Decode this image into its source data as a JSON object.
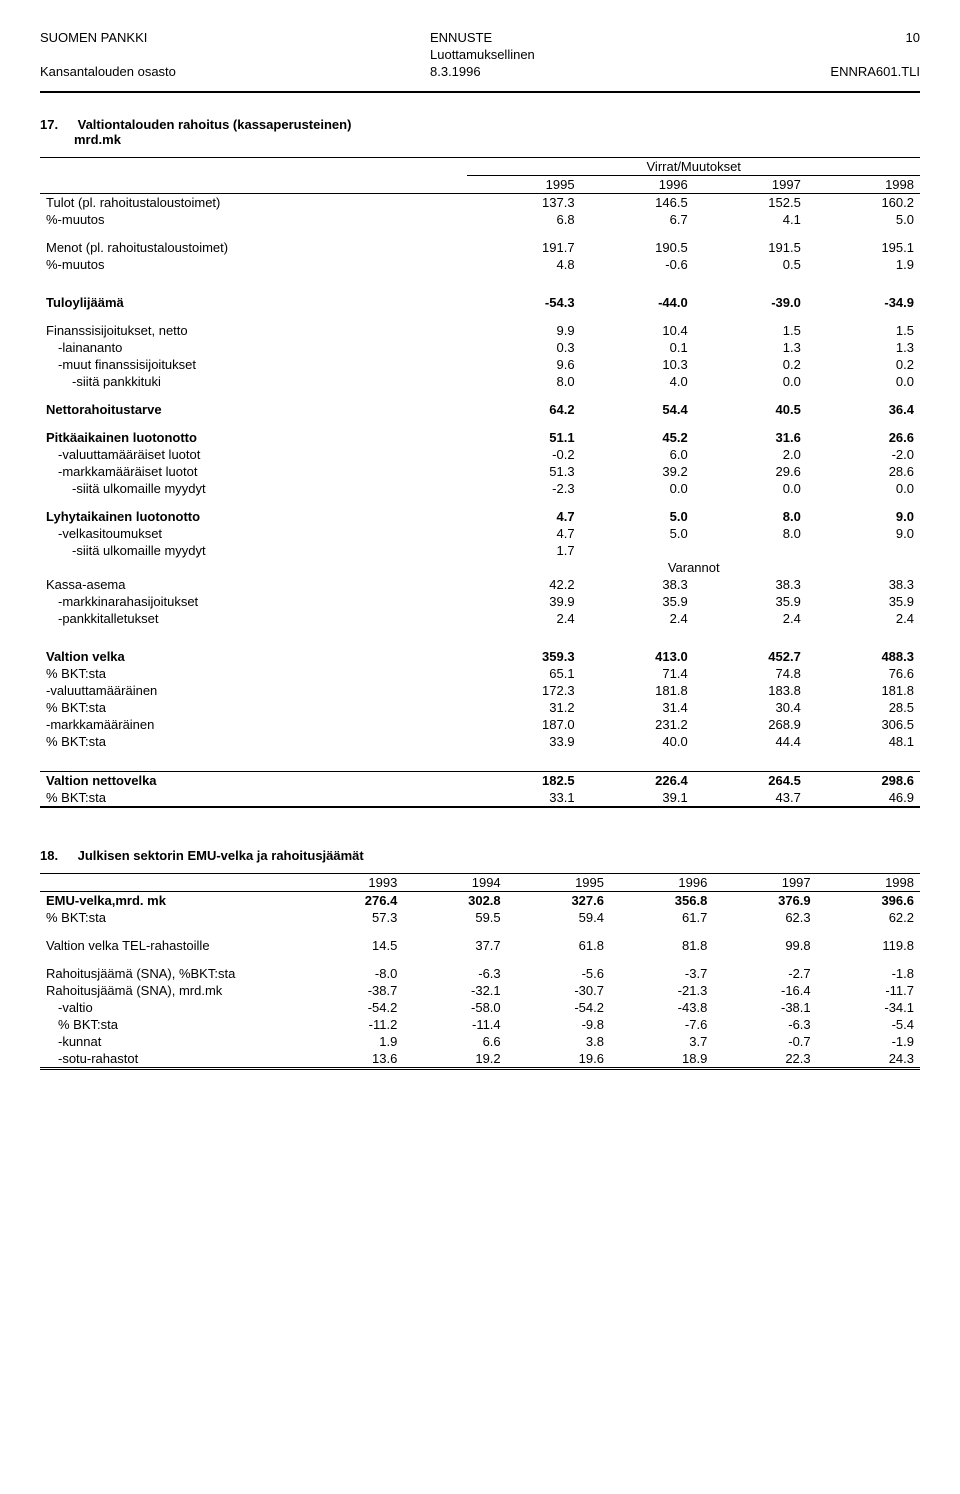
{
  "header": {
    "org1": "SUOMEN PANKKI",
    "org2": "Kansantalouden osasto",
    "mid1": "ENNUSTE",
    "mid2": "Luottamuksellinen",
    "date": "8.3.1996",
    "pagenum": "10",
    "code": "ENNRA601.TLI"
  },
  "s17": {
    "num": "17.",
    "title": "Valtiontalouden rahoitus (kassaperusteinen)",
    "sub": "mrd.mk",
    "spanhead": "Virrat/Muutokset",
    "years": [
      "1995",
      "1996",
      "1997",
      "1998"
    ],
    "rows": [
      {
        "label": "Tulot (pl. rahoitustaloustoimet)",
        "v": [
          "137.3",
          "146.5",
          "152.5",
          "160.2"
        ]
      },
      {
        "label": "%-muutos",
        "v": [
          "6.8",
          "6.7",
          "4.1",
          "5.0"
        ]
      },
      {
        "gap": true
      },
      {
        "label": "Menot (pl. rahoitustaloustoimet)",
        "v": [
          "191.7",
          "190.5",
          "191.5",
          "195.1"
        ]
      },
      {
        "label": "%-muutos",
        "v": [
          "4.8",
          "-0.6",
          "0.5",
          "1.9"
        ]
      },
      {
        "biggap": true
      },
      {
        "label": "Tuloylijäämä",
        "bold": true,
        "v": [
          "-54.3",
          "-44.0",
          "-39.0",
          "-34.9"
        ]
      },
      {
        "gap": true
      },
      {
        "label": "Finanssisijoitukset, netto",
        "v": [
          "9.9",
          "10.4",
          "1.5",
          "1.5"
        ]
      },
      {
        "label": "-lainananto",
        "indent": 1,
        "v": [
          "0.3",
          "0.1",
          "1.3",
          "1.3"
        ]
      },
      {
        "label": "-muut finanssisijoitukset",
        "indent": 1,
        "v": [
          "9.6",
          "10.3",
          "0.2",
          "0.2"
        ]
      },
      {
        "label": "-siitä pankkituki",
        "indent": 2,
        "v": [
          "8.0",
          "4.0",
          "0.0",
          "0.0"
        ]
      },
      {
        "gap": true
      },
      {
        "label": "Nettorahoitustarve",
        "bold": true,
        "v": [
          "64.2",
          "54.4",
          "40.5",
          "36.4"
        ]
      },
      {
        "gap": true
      },
      {
        "label": "Pitkäaikainen luotonotto",
        "bold": true,
        "v": [
          "51.1",
          "45.2",
          "31.6",
          "26.6"
        ]
      },
      {
        "label": "-valuuttamääräiset luotot",
        "indent": 1,
        "v": [
          "-0.2",
          "6.0",
          "2.0",
          "-2.0"
        ]
      },
      {
        "label": "-markkamääräiset luotot",
        "indent": 1,
        "v": [
          "51.3",
          "39.2",
          "29.6",
          "28.6"
        ]
      },
      {
        "label": "-siitä ulkomaille myydyt",
        "indent": 2,
        "v": [
          "-2.3",
          "0.0",
          "0.0",
          "0.0"
        ]
      },
      {
        "gap": true
      },
      {
        "label": "Lyhytaikainen luotonotto",
        "bold": true,
        "v": [
          "4.7",
          "5.0",
          "8.0",
          "9.0"
        ]
      },
      {
        "label": "-velkasitoumukset",
        "indent": 1,
        "v": [
          "4.7",
          "5.0",
          "8.0",
          "9.0"
        ]
      },
      {
        "label": "-siitä ulkomaille myydyt",
        "indent": 2,
        "v": [
          "1.7",
          "",
          "",
          ""
        ]
      },
      {
        "varannot": true,
        "label": "Varannot"
      },
      {
        "label": "Kassa-asema",
        "v": [
          "42.2",
          "38.3",
          "38.3",
          "38.3"
        ]
      },
      {
        "label": "-markkinarahasijoitukset",
        "indent": 1,
        "v": [
          "39.9",
          "35.9",
          "35.9",
          "35.9"
        ]
      },
      {
        "label": "-pankkitalletukset",
        "indent": 1,
        "v": [
          "2.4",
          "2.4",
          "2.4",
          "2.4"
        ]
      },
      {
        "biggap": true
      },
      {
        "label": "Valtion velka",
        "bold": true,
        "v": [
          "359.3",
          "413.0",
          "452.7",
          "488.3"
        ]
      },
      {
        "label": "% BKT:sta",
        "v": [
          "65.1",
          "71.4",
          "74.8",
          "76.6"
        ]
      },
      {
        "label": "-valuuttamääräinen",
        "v": [
          "172.3",
          "181.8",
          "183.8",
          "181.8"
        ]
      },
      {
        "label": "% BKT:sta",
        "v": [
          "31.2",
          "31.4",
          "30.4",
          "28.5"
        ]
      },
      {
        "label": "-markkamääräinen",
        "v": [
          "187.0",
          "231.2",
          "268.9",
          "306.5"
        ]
      },
      {
        "label": "% BKT:sta",
        "v": [
          "33.9",
          "40.0",
          "44.4",
          "48.1"
        ]
      },
      {
        "biggap": true
      },
      {
        "label": "Valtion nettovelka",
        "bold": true,
        "v": [
          "182.5",
          "226.4",
          "264.5",
          "298.6"
        ],
        "toprule": true
      },
      {
        "label": "% BKT:sta",
        "v": [
          "33.1",
          "39.1",
          "43.7",
          "46.9"
        ],
        "botrule2": true
      }
    ]
  },
  "s18": {
    "num": "18.",
    "title": "Julkisen sektorin EMU-velka ja rahoitusjäämät",
    "years": [
      "1993",
      "1994",
      "1995",
      "1996",
      "1997",
      "1998"
    ],
    "rows": [
      {
        "label": "EMU-velka,mrd. mk",
        "bold": true,
        "v": [
          "276.4",
          "302.8",
          "327.6",
          "356.8",
          "376.9",
          "396.6"
        ]
      },
      {
        "label": "% BKT:sta",
        "v": [
          "57.3",
          "59.5",
          "59.4",
          "61.7",
          "62.3",
          "62.2"
        ]
      },
      {
        "gap": true
      },
      {
        "label": "Valtion velka TEL-rahastoille",
        "v": [
          "14.5",
          "37.7",
          "61.8",
          "81.8",
          "99.8",
          "119.8"
        ]
      },
      {
        "gap": true
      },
      {
        "label": "Rahoitusjäämä (SNA), %BKT:sta",
        "v": [
          "-8.0",
          "-6.3",
          "-5.6",
          "-3.7",
          "-2.7",
          "-1.8"
        ]
      },
      {
        "label": "Rahoitusjäämä (SNA), mrd.mk",
        "v": [
          "-38.7",
          "-32.1",
          "-30.7",
          "-21.3",
          "-16.4",
          "-11.7"
        ]
      },
      {
        "label": "-valtio",
        "indent": 1,
        "v": [
          "-54.2",
          "-58.0",
          "-54.2",
          "-43.8",
          "-38.1",
          "-34.1"
        ]
      },
      {
        "label": "% BKT:sta",
        "indent": 1,
        "v": [
          "-11.2",
          "-11.4",
          "-9.8",
          "-7.6",
          "-6.3",
          "-5.4"
        ]
      },
      {
        "label": "-kunnat",
        "indent": 1,
        "v": [
          "1.9",
          "6.6",
          "3.8",
          "3.7",
          "-0.7",
          "-1.9"
        ]
      },
      {
        "label": "-sotu-rahastot",
        "indent": 1,
        "v": [
          "13.6",
          "19.2",
          "19.6",
          "18.9",
          "22.3",
          "24.3"
        ],
        "dblrule": true
      }
    ]
  }
}
